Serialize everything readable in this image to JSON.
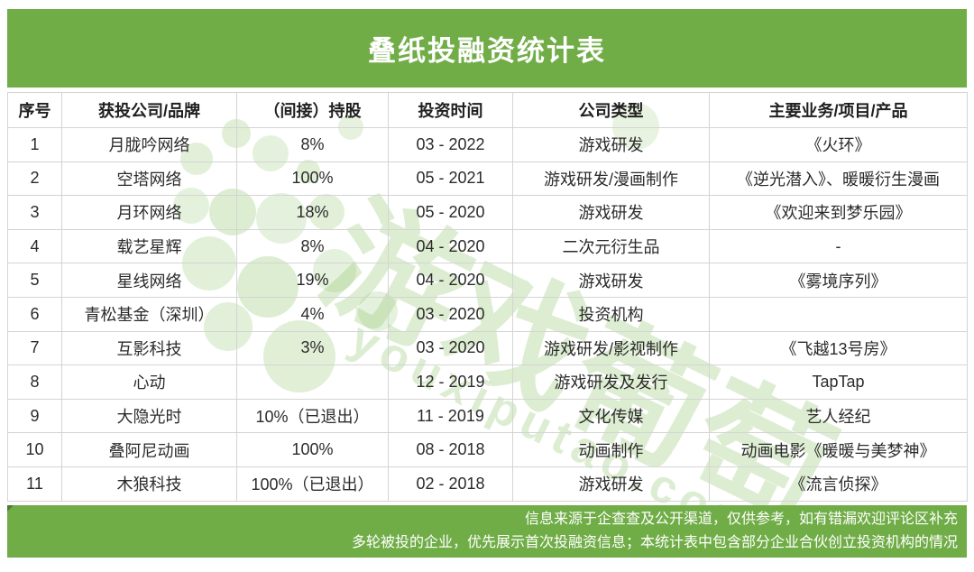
{
  "title": "叠纸投融资统计表",
  "colors": {
    "accent_green": "#70AD47",
    "watermark_green": "#8FC46B",
    "border_gray": "#D4D4D4",
    "text_dark": "#2B2B2B",
    "footer_text": "#FFFFFF"
  },
  "table": {
    "headers": [
      "序号",
      "获投公司/品牌",
      "（间接）持股",
      "投资时间",
      "公司类型",
      "主要业务/项目/产品"
    ],
    "rows": [
      [
        "1",
        "月胧吟网络",
        "8%",
        "03 - 2022",
        "游戏研发",
        "《火环》"
      ],
      [
        "2",
        "空塔网络",
        "100%",
        "05 - 2021",
        "游戏研发/漫画制作",
        "《逆光潜入》、暖暖衍生漫画"
      ],
      [
        "3",
        "月环网络",
        "18%",
        "05 - 2020",
        "游戏研发",
        "《欢迎来到梦乐园》"
      ],
      [
        "4",
        "载艺星辉",
        "8%",
        "04 - 2020",
        "二次元衍生品",
        "-"
      ],
      [
        "5",
        "星线网络",
        "19%",
        "04 - 2020",
        "游戏研发",
        "《雾境序列》"
      ],
      [
        "6",
        "青松基金（深圳）",
        "4%",
        "03 - 2020",
        "投资机构",
        ""
      ],
      [
        "7",
        "互影科技",
        "3%",
        "03 - 2020",
        "游戏研发/影视制作",
        "《飞越13号房》"
      ],
      [
        "8",
        "心动",
        "",
        "12 - 2019",
        "游戏研发及发行",
        "TapTap"
      ],
      [
        "9",
        "大隐光时",
        "10%（已退出）",
        "11 - 2019",
        "文化传媒",
        "艺人经纪"
      ],
      [
        "10",
        "叠阿尼动画",
        "100%",
        "08 - 2018",
        "动画制作",
        "动画电影《暖暖与美梦神》"
      ],
      [
        "11",
        "木狼科技",
        "100%（已退出）",
        "02 - 2018",
        "游戏研发",
        "《流言侦探》"
      ]
    ]
  },
  "footer": {
    "line1": "信息来源于企查查及公开渠道，仅供参考，如有错漏欢迎评论区补充",
    "line2": "多轮被投的企业，优先展示首次投融资信息；本统计表中包含部分企业合伙创立投资机构的情况"
  },
  "watermark": {
    "text_cn": "游戏葡萄",
    "text_en": "youxiputao.com"
  }
}
